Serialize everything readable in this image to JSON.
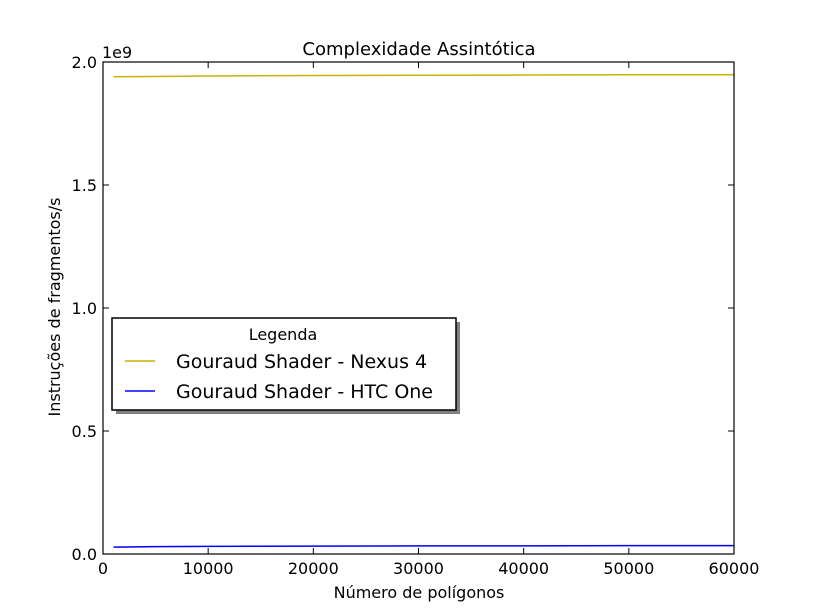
{
  "chart_data": {
    "type": "line",
    "title": "Complexidade Assintótica",
    "xlabel": "Número de polígonos",
    "ylabel": "Instruções de fragmentos/s",
    "y_offset_label": "1e9",
    "xlim": [
      0,
      60000
    ],
    "ylim": [
      0,
      2.0
    ],
    "y_scale_factor": 1000000000,
    "x_ticks": [
      0,
      10000,
      20000,
      30000,
      40000,
      50000,
      60000
    ],
    "x_tick_labels": [
      "0",
      "10000",
      "20000",
      "30000",
      "40000",
      "50000",
      "60000"
    ],
    "y_ticks": [
      0.0,
      0.5,
      1.0,
      1.5,
      2.0
    ],
    "y_tick_labels": [
      "0.0",
      "0.5",
      "1.0",
      "1.5",
      "2.0"
    ],
    "grid": false,
    "legend": {
      "title": "Legenda",
      "placement": "center-left"
    },
    "series": [
      {
        "name": "Gouraud Shader - Nexus 4",
        "color": "#c8b400",
        "x": [
          1000,
          5000,
          10000,
          20000,
          30000,
          40000,
          50000,
          60000
        ],
        "y": [
          1.94,
          1.941,
          1.943,
          1.945,
          1.946,
          1.947,
          1.948,
          1.948
        ]
      },
      {
        "name": "Gouraud Shader - HTC One",
        "color": "#0000ff",
        "x": [
          1000,
          5000,
          10000,
          20000,
          30000,
          40000,
          50000,
          60000
        ],
        "y": [
          0.028,
          0.03,
          0.031,
          0.032,
          0.033,
          0.033,
          0.034,
          0.034
        ]
      }
    ]
  }
}
